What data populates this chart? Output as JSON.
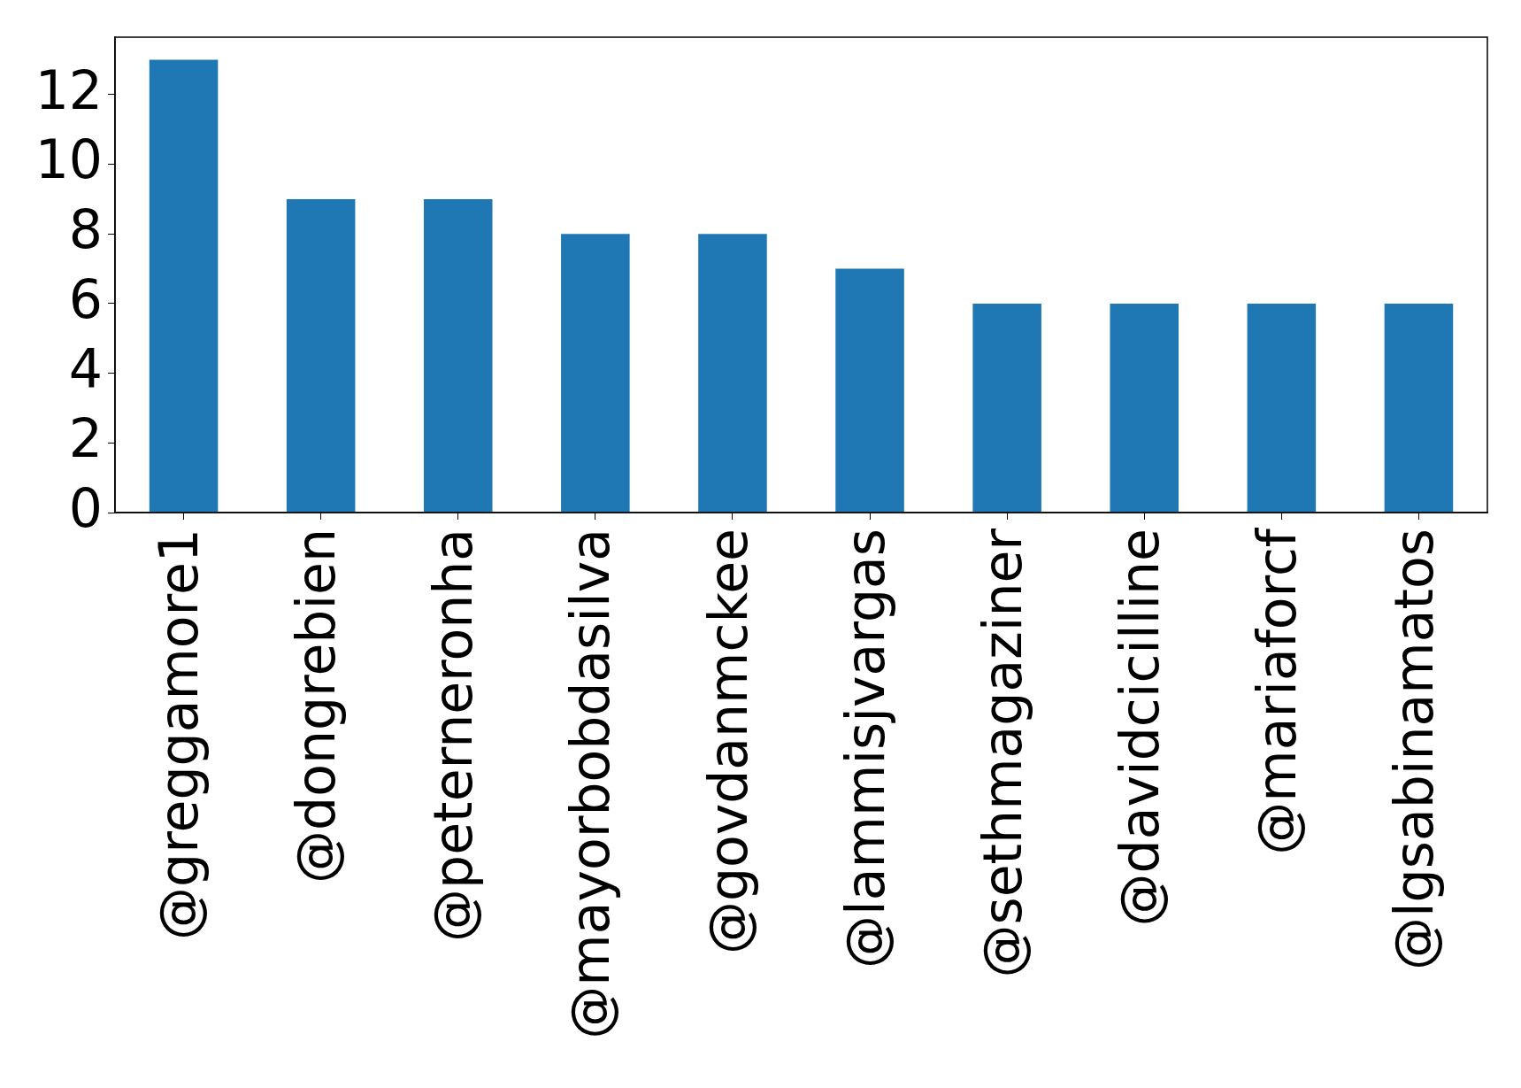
{
  "chart_data": {
    "type": "bar",
    "categories": [
      "@greggamore1",
      "@dongrebien",
      "@peterneronha",
      "@mayorbobdasilva",
      "@govdanmckee",
      "@lammisjvargas",
      "@sethmagaziner",
      "@davidcicilline",
      "@mariaforcf",
      "@lgsabinamatos"
    ],
    "values": [
      13,
      9,
      9,
      8,
      8,
      7,
      6,
      6,
      6,
      6
    ],
    "color": "#1f77b4",
    "ylim": [
      0,
      13.65
    ],
    "yticks": [
      0,
      2,
      4,
      6,
      8,
      10,
      12
    ]
  }
}
